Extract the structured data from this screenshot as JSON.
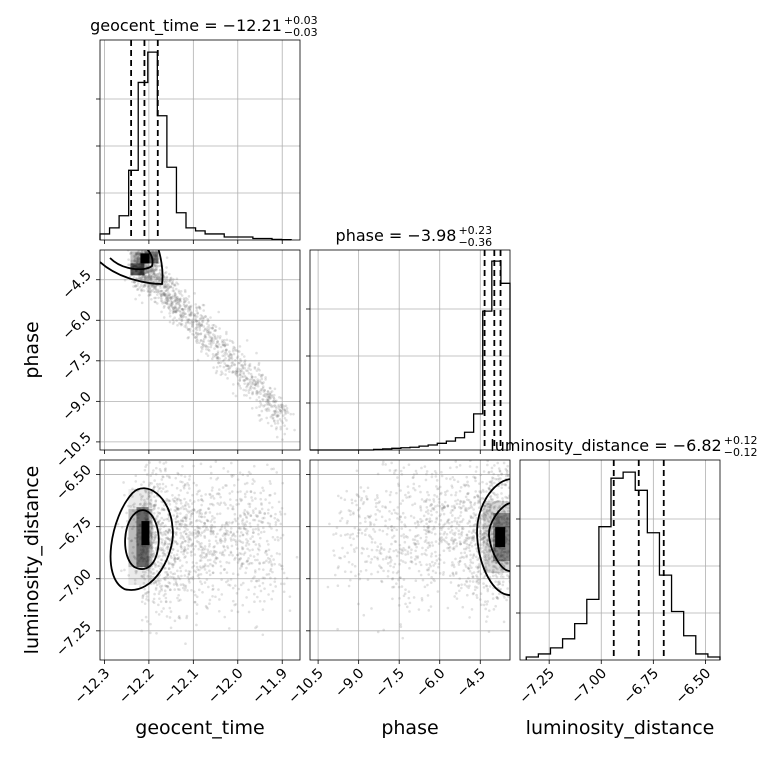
{
  "chart_data": {
    "type": "corner",
    "parameters": [
      "geocent_time",
      "phase",
      "luminosity_distance"
    ],
    "titles": [
      {
        "base": "geocent_time = −12.21",
        "plus": "+0.03",
        "minus": "−0.03"
      },
      {
        "base": "phase = −3.98",
        "plus": "+0.23",
        "minus": "−0.36"
      },
      {
        "base": "luminosity_distance = −6.82",
        "plus": "+0.12",
        "minus": "−0.12"
      }
    ],
    "xlabels": [
      "geocent_time",
      "phase",
      "luminosity_distance"
    ],
    "ylabels": [
      "phase",
      "luminosity_distance"
    ],
    "ranges": [
      [
        -12.31,
        -11.86
      ],
      [
        -10.8,
        -3.4
      ],
      [
        -7.39,
        -6.43
      ]
    ],
    "ticks": [
      {
        "values": [
          -12.3,
          -12.2,
          -12.1,
          -12.0,
          -11.9
        ],
        "labels": [
          "−12.3",
          "−12.2",
          "−12.1",
          "−12.0",
          "−11.9"
        ]
      },
      {
        "values": [
          -10.5,
          -9.0,
          -7.5,
          -6.0,
          -4.5
        ],
        "labels": [
          "−10.5",
          "−9.0",
          "−7.5",
          "−6.0",
          "−4.5"
        ]
      },
      {
        "values": [
          -7.25,
          -7.0,
          -6.75,
          -6.5
        ],
        "labels": [
          "−7.25",
          "−7.00",
          "−6.75",
          "−6.50"
        ]
      }
    ],
    "quantiles": [
      [
        -12.24,
        -12.21,
        -12.18
      ],
      [
        -4.34,
        -3.98,
        -3.75
      ],
      [
        -6.94,
        -6.82,
        -6.7
      ]
    ],
    "histograms": [
      {
        "counts": [
          2,
          4,
          8,
          23,
          52,
          62,
          41,
          24,
          9,
          4,
          3,
          2,
          2,
          1,
          1,
          1,
          0.5,
          0.5,
          0.2,
          0.1
        ],
        "ymax": 66
      },
      {
        "counts": [
          0,
          0,
          0,
          0,
          0,
          0,
          0,
          0.1,
          0.2,
          0.3,
          0.4,
          0.5,
          0.7,
          0.9,
          1.2,
          1.6,
          2.2,
          3.2,
          6.5,
          25,
          34,
          30
        ],
        "ymax": 36
      },
      {
        "counts": [
          0.5,
          1,
          2,
          3.5,
          6,
          10,
          22,
          30,
          31,
          28,
          21,
          14,
          8,
          4,
          1,
          0.5
        ],
        "ymax": 33
      }
    ],
    "contour_levels": [
      "inner",
      "outer"
    ],
    "grid": true
  }
}
